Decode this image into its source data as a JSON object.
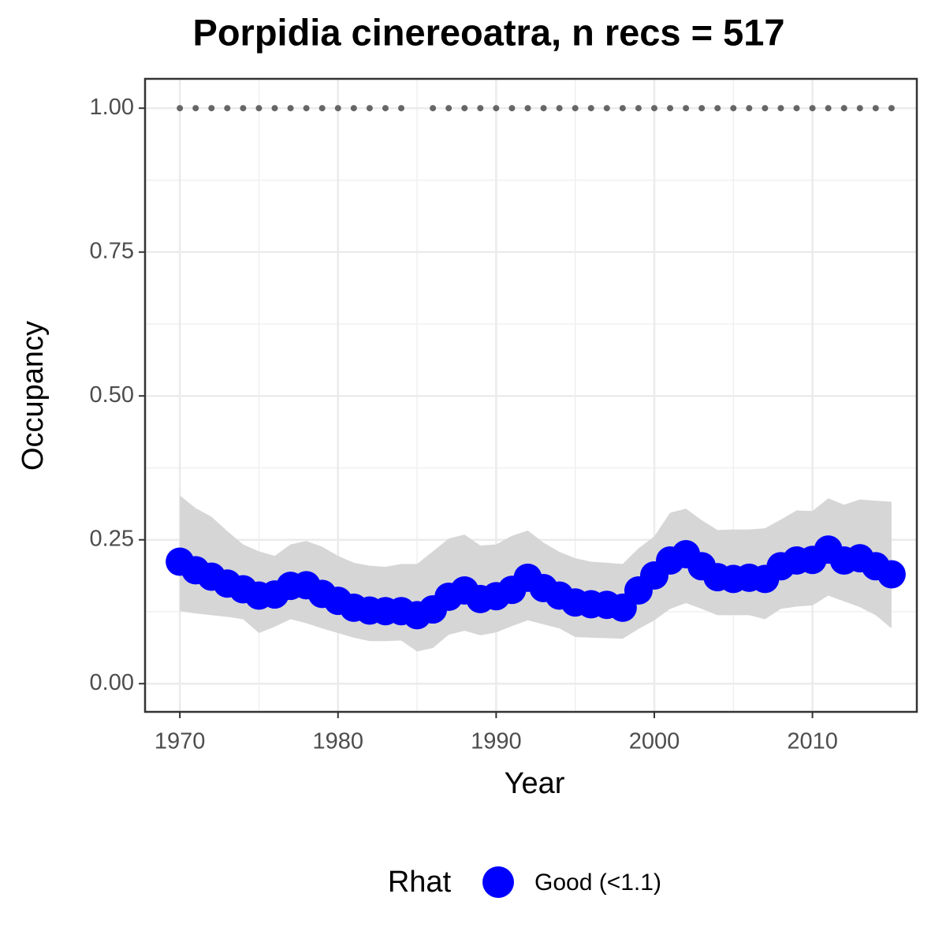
{
  "chart_data": {
    "type": "occupancy",
    "title": "Porpidia cinereoatra, n recs = 517",
    "x_label": "Year",
    "y_label": "Occupancy",
    "x": [
      1970,
      1971,
      1972,
      1973,
      1974,
      1975,
      1976,
      1977,
      1978,
      1979,
      1980,
      1981,
      1982,
      1983,
      1984,
      1985,
      1986,
      1987,
      1988,
      1989,
      1990,
      1991,
      1992,
      1993,
      1994,
      1995,
      1996,
      1997,
      1998,
      1999,
      2000,
      2001,
      2002,
      2003,
      2004,
      2005,
      2006,
      2007,
      2008,
      2009,
      2010,
      2011,
      2012,
      2013,
      2014,
      2015
    ],
    "series": [
      {
        "name": "Good (<1.1)",
        "color": "#0000ff",
        "values": [
          0.212,
          0.197,
          0.186,
          0.174,
          0.164,
          0.153,
          0.155,
          0.17,
          0.171,
          0.156,
          0.144,
          0.132,
          0.127,
          0.126,
          0.126,
          0.119,
          0.129,
          0.151,
          0.162,
          0.147,
          0.152,
          0.163,
          0.184,
          0.166,
          0.153,
          0.141,
          0.138,
          0.137,
          0.132,
          0.162,
          0.188,
          0.214,
          0.225,
          0.204,
          0.185,
          0.182,
          0.184,
          0.182,
          0.204,
          0.214,
          0.215,
          0.233,
          0.214,
          0.218,
          0.204,
          0.19
        ]
      }
    ],
    "band": {
      "color": "#d6d6d6",
      "lower": [
        0.126,
        0.122,
        0.119,
        0.116,
        0.112,
        0.088,
        0.099,
        0.112,
        0.105,
        0.096,
        0.088,
        0.08,
        0.074,
        0.074,
        0.075,
        0.056,
        0.062,
        0.085,
        0.092,
        0.084,
        0.089,
        0.1,
        0.11,
        0.103,
        0.096,
        0.081,
        0.08,
        0.079,
        0.078,
        0.095,
        0.11,
        0.13,
        0.14,
        0.13,
        0.119,
        0.119,
        0.119,
        0.112,
        0.13,
        0.134,
        0.136,
        0.153,
        0.143,
        0.133,
        0.119,
        0.096
      ],
      "upper": [
        0.327,
        0.305,
        0.29,
        0.265,
        0.242,
        0.23,
        0.222,
        0.242,
        0.248,
        0.238,
        0.222,
        0.21,
        0.205,
        0.203,
        0.208,
        0.208,
        0.23,
        0.252,
        0.259,
        0.24,
        0.242,
        0.257,
        0.266,
        0.245,
        0.229,
        0.218,
        0.212,
        0.21,
        0.208,
        0.235,
        0.256,
        0.297,
        0.304,
        0.284,
        0.267,
        0.268,
        0.268,
        0.27,
        0.285,
        0.301,
        0.3,
        0.322,
        0.311,
        0.32,
        0.318,
        0.316
      ]
    },
    "records": {
      "color": "#666666",
      "values": [
        1,
        1,
        1,
        1,
        1,
        1,
        1,
        1,
        1,
        1,
        1,
        1,
        1,
        1,
        1,
        null,
        1,
        1,
        1,
        1,
        1,
        1,
        1,
        1,
        1,
        1,
        1,
        1,
        1,
        1,
        1,
        1,
        1,
        1,
        1,
        1,
        1,
        1,
        1,
        1,
        1,
        1,
        1,
        1,
        1,
        1
      ]
    },
    "xlim": [
      1967.8,
      2016.6
    ],
    "xticks": [
      1970,
      1980,
      1990,
      2000,
      2010
    ],
    "ylim": [
      -0.049,
      1.051
    ],
    "yticks": [
      {
        "value": 0,
        "label": "0.00"
      },
      {
        "value": 0.25,
        "label": "0.25"
      },
      {
        "value": 0.5,
        "label": "0.50"
      },
      {
        "value": 0.75,
        "label": "0.75"
      },
      {
        "value": 1,
        "label": "1.00"
      }
    ],
    "grid": true,
    "minor_grid": true,
    "legend_title": "Rhat",
    "legend_position": "bottom"
  }
}
